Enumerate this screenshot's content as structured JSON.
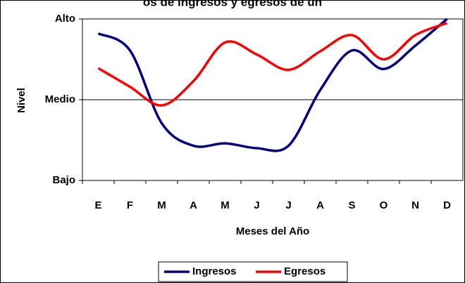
{
  "chart_data": {
    "type": "line",
    "title": "os de ingresos y egresos de un",
    "x_label": "Meses del Año",
    "y_label": "Nivel",
    "categories": [
      "E",
      "F",
      "M",
      "A",
      "M",
      "J",
      "J",
      "A",
      "S",
      "O",
      "N",
      "D"
    ],
    "series": [
      {
        "name": "Ingresos",
        "color": "#000080",
        "values": [
          1.82,
          1.61,
          0.71,
          0.43,
          0.46,
          0.4,
          0.43,
          1.12,
          1.61,
          1.38,
          1.67,
          2.0
        ]
      },
      {
        "name": "Egresos",
        "color": "#ff0000",
        "values": [
          1.39,
          1.16,
          0.93,
          1.23,
          1.71,
          1.56,
          1.37,
          1.6,
          1.8,
          1.5,
          1.8,
          1.95
        ]
      }
    ],
    "ylim": [
      0,
      2
    ],
    "yticks": [
      {
        "value": 0,
        "label": "Bajo"
      },
      {
        "value": 1,
        "label": "Medio"
      },
      {
        "value": 2,
        "label": "Alto"
      }
    ],
    "grid": true,
    "legend": "bottom"
  }
}
